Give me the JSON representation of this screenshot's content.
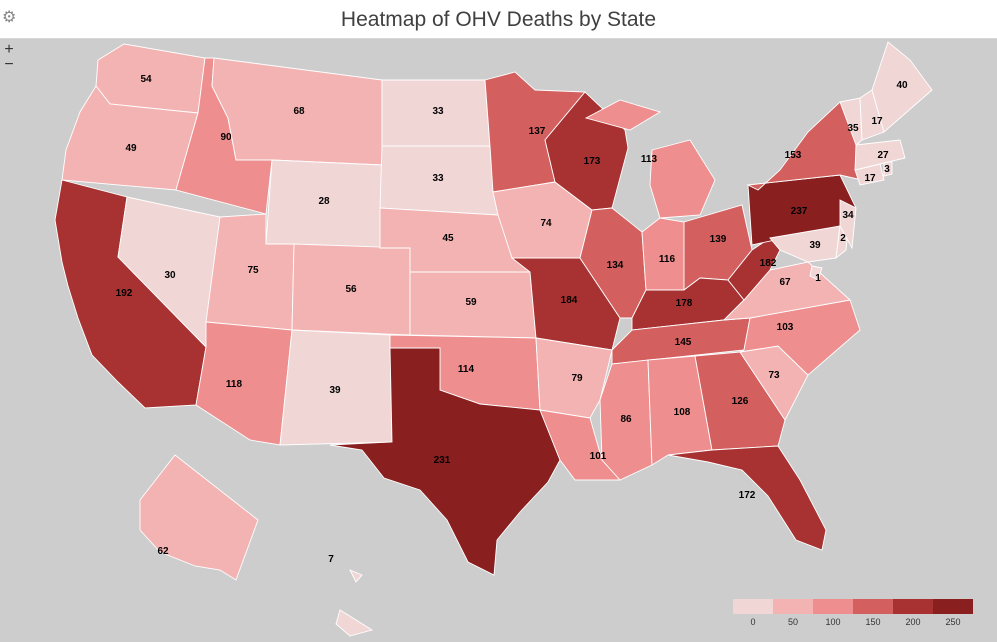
{
  "title": "Heatmap of OHV Deaths by State",
  "icons": {
    "settings": "gear-icon",
    "zoom_in": "plus-icon",
    "zoom_out": "minus-icon"
  },
  "zoom": {
    "in_label": "+",
    "out_label": "−"
  },
  "legend": {
    "ticks": [
      "0",
      "50",
      "100",
      "150",
      "200",
      "250"
    ],
    "colors": [
      "#f1d6d6",
      "#f4b3b3",
      "#ee8e8e",
      "#d35f5f",
      "#a83232",
      "#8a1f1f"
    ]
  },
  "chart_data": {
    "type": "heatmap",
    "title": "Heatmap of OHV Deaths by State",
    "scale": {
      "min": 0,
      "max": 250
    },
    "states": [
      {
        "state": "WA",
        "value": 54
      },
      {
        "state": "OR",
        "value": 49
      },
      {
        "state": "CA",
        "value": 192
      },
      {
        "state": "NV",
        "value": 30
      },
      {
        "state": "ID",
        "value": 90
      },
      {
        "state": "MT",
        "value": 68
      },
      {
        "state": "WY",
        "value": 28
      },
      {
        "state": "UT",
        "value": 75
      },
      {
        "state": "AZ",
        "value": 118
      },
      {
        "state": "CO",
        "value": 56
      },
      {
        "state": "NM",
        "value": 39
      },
      {
        "state": "ND",
        "value": 33
      },
      {
        "state": "SD",
        "value": 33
      },
      {
        "state": "NE",
        "value": 45
      },
      {
        "state": "KS",
        "value": 59
      },
      {
        "state": "OK",
        "value": 114
      },
      {
        "state": "TX",
        "value": 231
      },
      {
        "state": "MN",
        "value": 137
      },
      {
        "state": "IA",
        "value": 74
      },
      {
        "state": "MO",
        "value": 184
      },
      {
        "state": "AR",
        "value": 79
      },
      {
        "state": "LA",
        "value": 101
      },
      {
        "state": "WI",
        "value": 173
      },
      {
        "state": "IL",
        "value": 134
      },
      {
        "state": "MI",
        "value": 113
      },
      {
        "state": "IN",
        "value": 116
      },
      {
        "state": "OH",
        "value": 139
      },
      {
        "state": "KY",
        "value": 178
      },
      {
        "state": "TN",
        "value": 145
      },
      {
        "state": "MS",
        "value": 86
      },
      {
        "state": "AL",
        "value": 108
      },
      {
        "state": "GA",
        "value": 126
      },
      {
        "state": "FL",
        "value": 172
      },
      {
        "state": "SC",
        "value": 73
      },
      {
        "state": "NC",
        "value": 103
      },
      {
        "state": "VA",
        "value": 67
      },
      {
        "state": "WV",
        "value": 182
      },
      {
        "state": "PA",
        "value": 237
      },
      {
        "state": "NY",
        "value": 153
      },
      {
        "state": "MD",
        "value": 39
      },
      {
        "state": "DE",
        "value": 2
      },
      {
        "state": "NJ",
        "value": 34
      },
      {
        "state": "DC",
        "value": 1
      },
      {
        "state": "CT",
        "value": 17
      },
      {
        "state": "RI",
        "value": 3
      },
      {
        "state": "MA",
        "value": 27
      },
      {
        "state": "VT",
        "value": 35
      },
      {
        "state": "NH",
        "value": 17
      },
      {
        "state": "ME",
        "value": 40
      },
      {
        "state": "AK",
        "value": 62
      },
      {
        "state": "HI",
        "value": 7
      }
    ]
  }
}
